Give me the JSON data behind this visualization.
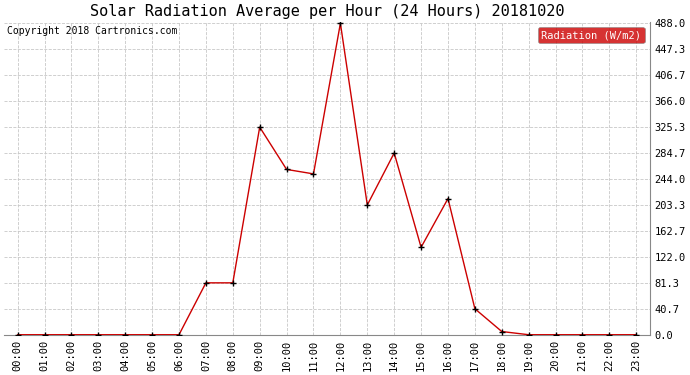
{
  "title": "Solar Radiation Average per Hour (24 Hours) 20181020",
  "copyright": "Copyright 2018 Cartronics.com",
  "legend_label": "Radiation (W/m2)",
  "x_labels": [
    "00:00",
    "01:00",
    "02:00",
    "03:00",
    "04:00",
    "05:00",
    "06:00",
    "07:00",
    "08:00",
    "09:00",
    "10:00",
    "11:00",
    "12:00",
    "13:00",
    "14:00",
    "15:00",
    "16:00",
    "17:00",
    "18:00",
    "19:00",
    "20:00",
    "21:00",
    "22:00",
    "23:00"
  ],
  "y_values": [
    0.0,
    0.0,
    0.0,
    0.0,
    0.0,
    0.0,
    0.0,
    81.3,
    81.3,
    325.3,
    259.0,
    252.0,
    488.0,
    203.3,
    284.7,
    137.0,
    213.3,
    40.7,
    5.0,
    0.0,
    0.0,
    0.0,
    0.0,
    0.0
  ],
  "y_ticks": [
    0.0,
    40.7,
    81.3,
    122.0,
    162.7,
    203.3,
    244.0,
    284.7,
    325.3,
    366.0,
    406.7,
    447.3,
    488.0
  ],
  "ylim_max": 488.0,
  "line_color": "#cc0000",
  "marker_color": "#000000",
  "background_color": "#ffffff",
  "grid_color": "#c8c8c8",
  "legend_bg": "#cc0000",
  "legend_text_color": "#ffffff",
  "title_fontsize": 11,
  "copyright_fontsize": 7,
  "tick_fontsize": 7.5
}
